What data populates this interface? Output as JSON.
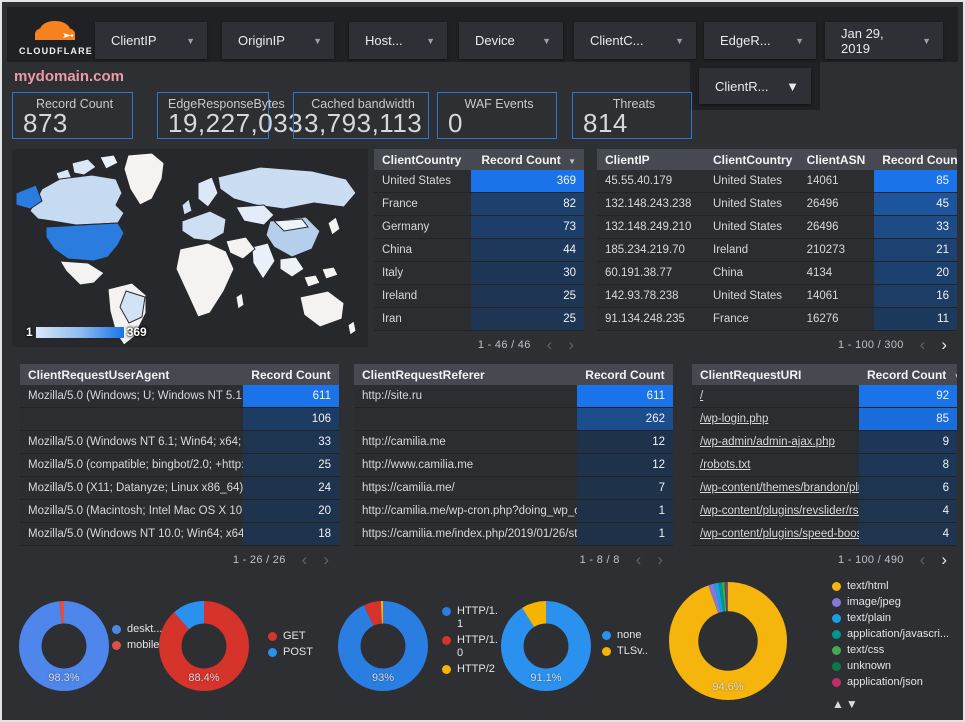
{
  "brand": {
    "name": "CLOUDFLARE"
  },
  "page": {
    "title": "mydomain.com"
  },
  "filters": [
    {
      "label": "ClientIP"
    },
    {
      "label": "OriginIP"
    },
    {
      "label": "Host..."
    },
    {
      "label": "Device"
    },
    {
      "label": "ClientC..."
    },
    {
      "label": "EdgeR..."
    },
    {
      "label": "Jan 29, 2019"
    }
  ],
  "filter_second_row": {
    "label": "ClientR..."
  },
  "scorecards": [
    {
      "label": "Record Count",
      "value": "873"
    },
    {
      "label": "EdgeResponseBytes",
      "value": "19,227,033"
    },
    {
      "label": "Cached bandwidth",
      "value": "3,793,113"
    },
    {
      "label": "WAF Events",
      "value": "0"
    },
    {
      "label": "Threats",
      "value": "814"
    }
  ],
  "map": {
    "legend_min": "1",
    "legend_max": "369"
  },
  "tables": {
    "client_country": {
      "columns": [
        "ClientCountry",
        "Record Count"
      ],
      "rows": [
        [
          "United States",
          369
        ],
        [
          "France",
          82
        ],
        [
          "Germany",
          73
        ],
        [
          "China",
          44
        ],
        [
          "Italy",
          30
        ],
        [
          "Ireland",
          25
        ],
        [
          "Iran",
          25
        ]
      ],
      "pagination": "1 - 46 / 46",
      "next_active": false,
      "links": false
    },
    "client_ip": {
      "columns": [
        "ClientIP",
        "ClientCountry",
        "ClientASN",
        "Record Count"
      ],
      "rows": [
        [
          "45.55.40.179",
          "United States",
          "14061",
          85
        ],
        [
          "132.148.243.238",
          "United States",
          "26496",
          45
        ],
        [
          "132.148.249.210",
          "United States",
          "26496",
          33
        ],
        [
          "185.234.219.70",
          "Ireland",
          "210273",
          21
        ],
        [
          "60.191.38.77",
          "China",
          "4134",
          20
        ],
        [
          "142.93.78.238",
          "United States",
          "14061",
          16
        ],
        [
          "91.134.248.235",
          "France",
          "16276",
          11
        ]
      ],
      "pagination": "1 - 100 / 300",
      "next_active": true,
      "links": false
    },
    "user_agent": {
      "columns": [
        "ClientRequestUserAgent",
        "Record Count"
      ],
      "rows": [
        [
          "Mozilla/5.0 (Windows; U; Windows NT 5.1; en-U...",
          611
        ],
        [
          "",
          106
        ],
        [
          "Mozilla/5.0 (Windows NT 6.1; Win64; x64; rv:64...",
          33
        ],
        [
          "Mozilla/5.0 (compatible; bingbot/2.0; +http://w...",
          25
        ],
        [
          "Mozilla/5.0 (X11; Datanyze; Linux x86_64) Appl...",
          24
        ],
        [
          "Mozilla/5.0 (Macintosh; Intel Mac OS X 10.11; r...",
          20
        ],
        [
          "Mozilla/5.0 (Windows NT 10.0; Win64; x64) App...",
          18
        ]
      ],
      "pagination": "1 - 26 / 26",
      "next_active": false,
      "links": false
    },
    "referer": {
      "columns": [
        "ClientRequestReferer",
        "Record Count"
      ],
      "rows": [
        [
          "http://site.ru",
          611
        ],
        [
          "",
          262
        ],
        [
          "http://camilia.me",
          12
        ],
        [
          "http://www.camilia.me",
          12
        ],
        [
          "https://camilia.me/",
          7
        ],
        [
          "http://camilia.me/wp-cron.php?doing_wp_cron...",
          1
        ],
        [
          "https://camilia.me/index.php/2019/01/26/stor...",
          1
        ]
      ],
      "pagination": "1 - 8 / 8",
      "next_active": false,
      "links": false
    },
    "request_uri": {
      "columns": [
        "ClientRequestURI",
        "Record Count"
      ],
      "rows": [
        [
          "/",
          92
        ],
        [
          "/wp-login.php",
          85
        ],
        [
          "/wp-admin/admin-ajax.php",
          9
        ],
        [
          "/robots.txt",
          8
        ],
        [
          "/wp-content/themes/brandon/plu...",
          6
        ],
        [
          "/wp-content/plugins/revslider/rs-p...",
          4
        ],
        [
          "/wp-content/plugins/speed-booste...",
          4
        ]
      ],
      "pagination": "1 - 100 / 490",
      "next_active": true,
      "links": true
    }
  },
  "donuts": [
    {
      "name": "device-type",
      "center_label": "98.3%",
      "slices": [
        {
          "label": "deskt...",
          "value": 98.3,
          "color": "#4e86ec"
        },
        {
          "label": "mobile",
          "value": 1.7,
          "color": "#dd5144"
        }
      ]
    },
    {
      "name": "http-method",
      "center_label": "88.4%",
      "slices": [
        {
          "label": "GET",
          "value": 88.4,
          "color": "#d6332a"
        },
        {
          "label": "POST",
          "value": 11.6,
          "color": "#2a91ef"
        }
      ]
    },
    {
      "name": "http-version",
      "center_label": "93%",
      "slices": [
        {
          "label": "HTTP/1.1",
          "value": 93.0,
          "color": "#2a7de1"
        },
        {
          "label": "HTTP/1.0",
          "value": 6.2,
          "color": "#d6332a"
        },
        {
          "label": "HTTP/2",
          "value": 0.8,
          "color": "#f4b400"
        }
      ]
    },
    {
      "name": "tls-version",
      "center_label": "91.1%",
      "slices": [
        {
          "label": "none",
          "value": 91.1,
          "color": "#2a91ef"
        },
        {
          "label": "TLSv..",
          "value": 8.9,
          "color": "#f4b400"
        }
      ]
    },
    {
      "name": "content-type",
      "center_label": "94.6%",
      "has_sort_arrows": true,
      "slices": [
        {
          "label": "text/html",
          "value": 94.6,
          "color": "#f6b50c"
        },
        {
          "label": "image/jpeg",
          "value": 1.6,
          "color": "#8079d8"
        },
        {
          "label": "text/plain",
          "value": 1.2,
          "color": "#17a2e8"
        },
        {
          "label": "application/javascri...",
          "value": 0.9,
          "color": "#00968b"
        },
        {
          "label": "text/css",
          "value": 0.7,
          "color": "#47a94f"
        },
        {
          "label": "unknown",
          "value": 0.5,
          "color": "#0a7a43"
        },
        {
          "label": "application/json",
          "value": 0.5,
          "color": "#c22d6a"
        }
      ]
    }
  ],
  "colors": {
    "heat_low": "#1e3148",
    "heat_high": "#1a73e8",
    "card_border": "#2e77d0",
    "accent": "#1a73e8"
  }
}
